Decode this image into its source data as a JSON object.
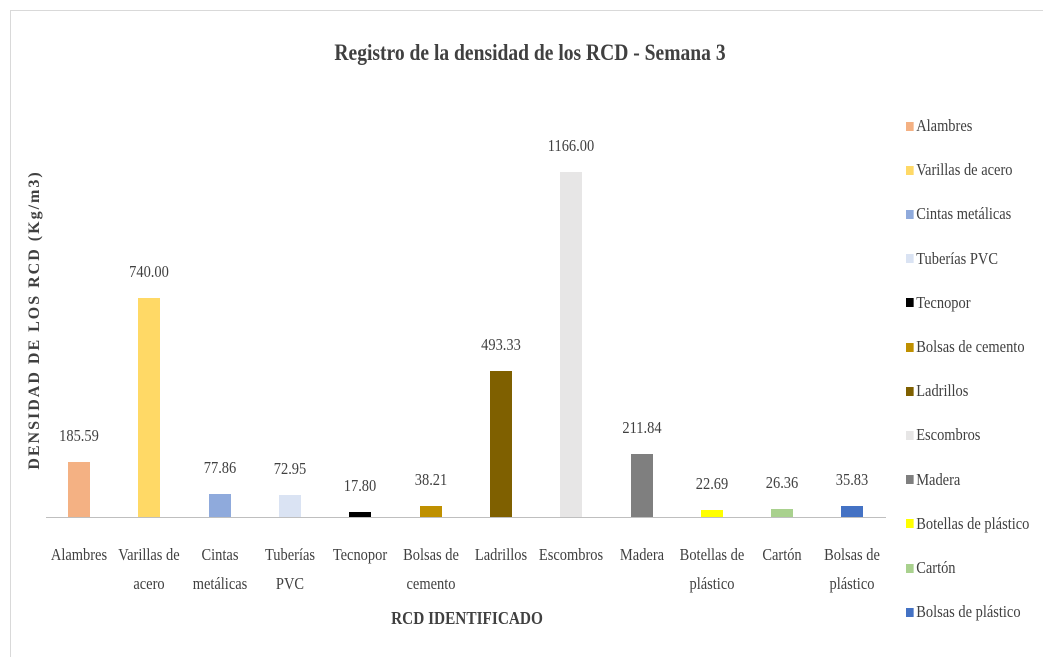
{
  "chart_data": {
    "type": "bar",
    "title": "Registro de la densidad de los RCD - Semana 3",
    "x_label": "RCD IDENTIFICADO",
    "y_label": "DENSIDAD DE LOS RCD (Kg/m3)",
    "categories": [
      "Alambres",
      "Varillas de acero",
      "Cintas metálicas",
      "Tuberías PVC",
      "Tecnopor",
      "Bolsas de cemento",
      "Ladrillos",
      "Escombros",
      "Madera",
      "Botellas de plástico",
      "Cartón",
      "Bolsas de plástico"
    ],
    "values": [
      185.59,
      740,
      77.86,
      72.95,
      17.8,
      38.21,
      493.33,
      1166,
      211.84,
      22.69,
      26.36,
      35.83
    ],
    "value_labels": [
      "185.59",
      "740.00",
      "77.86",
      "72.95",
      "17.80",
      "38.21",
      "493.33",
      "1166.00",
      "211.84",
      "22.69",
      "26.36",
      "35.83"
    ],
    "colors": [
      "#f4b183",
      "#ffd966",
      "#8faadc",
      "#dae3f3",
      "#000000",
      "#bf9000",
      "#7f6000",
      "#e7e6e6",
      "#7f7f7f",
      "#ffff00",
      "#a9d18e",
      "#4472c4"
    ],
    "legend": "right"
  }
}
